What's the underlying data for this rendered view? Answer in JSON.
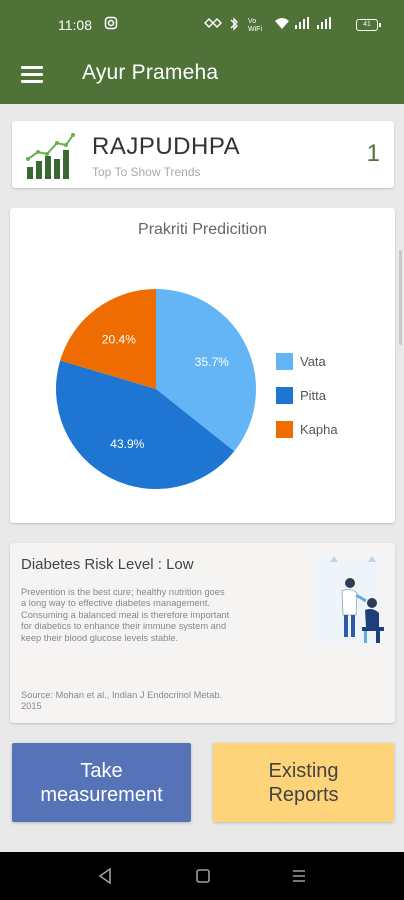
{
  "status_bar": {
    "time": "11:08",
    "battery": "41",
    "icons": [
      "instagram-icon",
      "hotspot-icon",
      "bluetooth-icon",
      "vowifi-icon",
      "wifi-icon",
      "signal-icon",
      "signal-icon",
      "battery-icon"
    ]
  },
  "app_bar": {
    "title": "Ayur Prameha",
    "menu_icon": "hamburger-menu-icon",
    "color": "#4e7238"
  },
  "trend_card": {
    "name": "RAJPUDHPA",
    "subtitle": "Top To Show Trends",
    "count": "1",
    "icon": "trend-chart-icon"
  },
  "chart_data": {
    "type": "pie",
    "title": "Prakriti Predicition",
    "legend_position": "right",
    "slices": [
      {
        "label": "Vata",
        "value": 35.7,
        "display": "35.7%",
        "color": "#64b5f6"
      },
      {
        "label": "Pitta",
        "value": 43.9,
        "display": "43.9%",
        "color": "#1e76d2"
      },
      {
        "label": "Kapha",
        "value": 20.4,
        "display": "20.4%",
        "color": "#ef6c00"
      }
    ]
  },
  "risk_card": {
    "title": "Diabetes Risk Level : Low",
    "text": "Prevention is the best cure; healthy nutrition goes a long way to effective diabetes management. Consuming a balanced meal is therefore important for diabetics to enhance their immune system and keep their blood glucose levels stable.",
    "source": "Source: Mohan et al., Indian J Endocrinol Metab. 2015",
    "illustration": "doctor-patient-illustration"
  },
  "buttons": {
    "take_measurement": "Take measurement",
    "existing_reports": "Existing Reports"
  },
  "nav_bar": {
    "back_icon": "back-icon",
    "home_icon": "home-icon",
    "recents_icon": "recents-icon"
  }
}
